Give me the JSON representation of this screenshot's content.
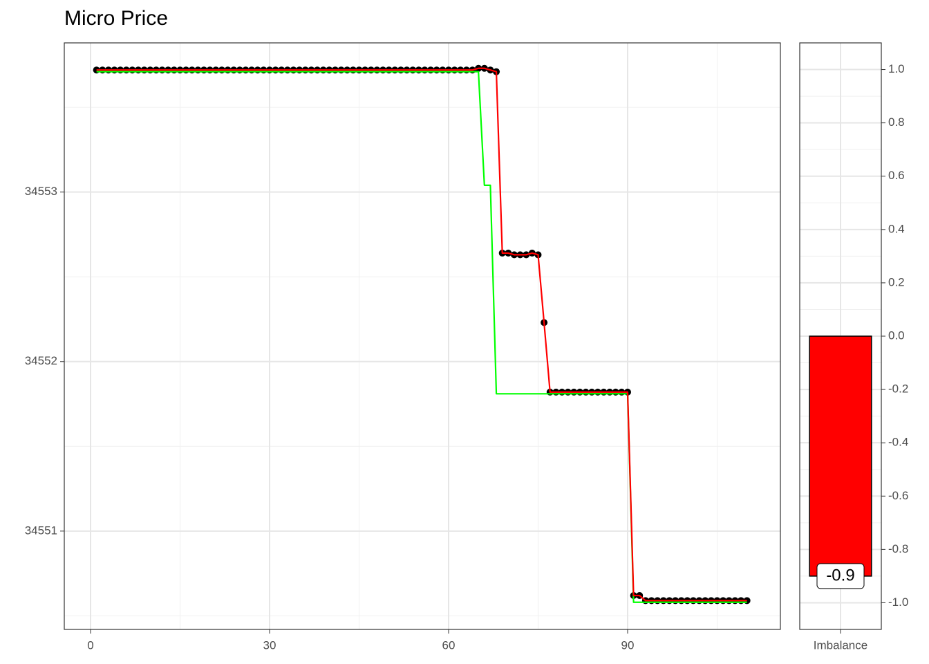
{
  "chart_data": [
    {
      "type": "line",
      "title": "Micro Price",
      "x": [
        1,
        2,
        3,
        4,
        5,
        6,
        7,
        8,
        9,
        10,
        11,
        12,
        13,
        14,
        15,
        16,
        17,
        18,
        19,
        20,
        21,
        22,
        23,
        24,
        25,
        26,
        27,
        28,
        29,
        30,
        31,
        32,
        33,
        34,
        35,
        36,
        37,
        38,
        39,
        40,
        41,
        42,
        43,
        44,
        45,
        46,
        47,
        48,
        49,
        50,
        51,
        52,
        53,
        54,
        55,
        56,
        57,
        58,
        59,
        60,
        61,
        62,
        63,
        64,
        65,
        66,
        67,
        68,
        69,
        70,
        71,
        72,
        73,
        74,
        75,
        76,
        77,
        78,
        79,
        80,
        81,
        82,
        83,
        84,
        85,
        86,
        87,
        88,
        89,
        90,
        91,
        92,
        93,
        94,
        95,
        96,
        97,
        98,
        99,
        100,
        101,
        102,
        103,
        104,
        105,
        106,
        107,
        108,
        109,
        110
      ],
      "series": [
        {
          "color": "#ff0000",
          "point_color": "#000000",
          "values": [
            34553.72,
            34553.72,
            34553.72,
            34553.72,
            34553.72,
            34553.72,
            34553.72,
            34553.72,
            34553.72,
            34553.72,
            34553.72,
            34553.72,
            34553.72,
            34553.72,
            34553.72,
            34553.72,
            34553.72,
            34553.72,
            34553.72,
            34553.72,
            34553.72,
            34553.72,
            34553.72,
            34553.72,
            34553.72,
            34553.72,
            34553.72,
            34553.72,
            34553.72,
            34553.72,
            34553.72,
            34553.72,
            34553.72,
            34553.72,
            34553.72,
            34553.72,
            34553.72,
            34553.72,
            34553.72,
            34553.72,
            34553.72,
            34553.72,
            34553.72,
            34553.72,
            34553.72,
            34553.72,
            34553.72,
            34553.72,
            34553.72,
            34553.72,
            34553.72,
            34553.72,
            34553.72,
            34553.72,
            34553.72,
            34553.72,
            34553.72,
            34553.72,
            34553.72,
            34553.72,
            34553.72,
            34553.72,
            34553.72,
            34553.72,
            34553.73,
            34553.73,
            34553.72,
            34553.71,
            34552.64,
            34552.64,
            34552.63,
            34552.63,
            34552.63,
            34552.64,
            34552.63,
            34552.23,
            34551.82,
            34551.82,
            34551.82,
            34551.82,
            34551.82,
            34551.82,
            34551.82,
            34551.82,
            34551.82,
            34551.82,
            34551.82,
            34551.82,
            34551.82,
            34551.82,
            34550.62,
            34550.62,
            34550.59,
            34550.59,
            34550.59,
            34550.59,
            34550.59,
            34550.59,
            34550.59,
            34550.59,
            34550.59,
            34550.59,
            34550.59,
            34550.59,
            34550.59,
            34550.59,
            34550.59,
            34550.59,
            34550.59,
            34550.59
          ]
        },
        {
          "color": "#00ff00",
          "values": [
            34553.71,
            34553.71,
            34553.71,
            34553.71,
            34553.71,
            34553.71,
            34553.71,
            34553.71,
            34553.71,
            34553.71,
            34553.71,
            34553.71,
            34553.71,
            34553.71,
            34553.71,
            34553.71,
            34553.71,
            34553.71,
            34553.71,
            34553.71,
            34553.71,
            34553.71,
            34553.71,
            34553.71,
            34553.71,
            34553.71,
            34553.71,
            34553.71,
            34553.71,
            34553.71,
            34553.71,
            34553.71,
            34553.71,
            34553.71,
            34553.71,
            34553.71,
            34553.71,
            34553.71,
            34553.71,
            34553.71,
            34553.71,
            34553.71,
            34553.71,
            34553.71,
            34553.71,
            34553.71,
            34553.71,
            34553.71,
            34553.71,
            34553.71,
            34553.71,
            34553.71,
            34553.71,
            34553.71,
            34553.71,
            34553.71,
            34553.71,
            34553.71,
            34553.71,
            34553.71,
            34553.71,
            34553.71,
            34553.71,
            34553.71,
            34553.71,
            34553.04,
            34553.04,
            34551.81,
            34551.81,
            34551.81,
            34551.81,
            34551.81,
            34551.81,
            34551.81,
            34551.81,
            34551.81,
            34551.81,
            34551.81,
            34551.81,
            34551.81,
            34551.81,
            34551.81,
            34551.81,
            34551.81,
            34551.81,
            34551.81,
            34551.81,
            34551.81,
            34551.81,
            34551.81,
            34550.58,
            34550.58,
            34550.58,
            34550.58,
            34550.58,
            34550.58,
            34550.58,
            34550.58,
            34550.58,
            34550.58,
            34550.58,
            34550.58,
            34550.58,
            34550.58,
            34550.58,
            34550.58,
            34550.58,
            34550.58,
            34550.58,
            34550.58
          ]
        }
      ],
      "xlim": [
        -4.4,
        115.6
      ],
      "xticks": [
        0,
        30,
        60,
        90
      ],
      "ylim": [
        34550.42,
        34553.88
      ],
      "yticks": [
        34551,
        34552,
        34553
      ],
      "grid": true
    },
    {
      "type": "bar",
      "categories": [
        "Imbalance"
      ],
      "values": [
        -0.9
      ],
      "color": "#ff0000",
      "ylim": [
        -1.1,
        1.1
      ],
      "yticks": [
        {
          "value": -1.0,
          "label": "-1.0"
        },
        {
          "value": -0.8,
          "label": "-0.8"
        },
        {
          "value": -0.6,
          "label": "-0.6"
        },
        {
          "value": -0.4,
          "label": "-0.4"
        },
        {
          "value": -0.2,
          "label": "-0.2"
        },
        {
          "value": 0.0,
          "label": "0.0"
        },
        {
          "value": 0.2,
          "label": "0.2"
        },
        {
          "value": 0.4,
          "label": "0.4"
        },
        {
          "value": 0.6,
          "label": "0.6"
        },
        {
          "value": 0.8,
          "label": "0.8"
        },
        {
          "value": 1.0,
          "label": "1.0"
        }
      ],
      "grid": true
    }
  ]
}
